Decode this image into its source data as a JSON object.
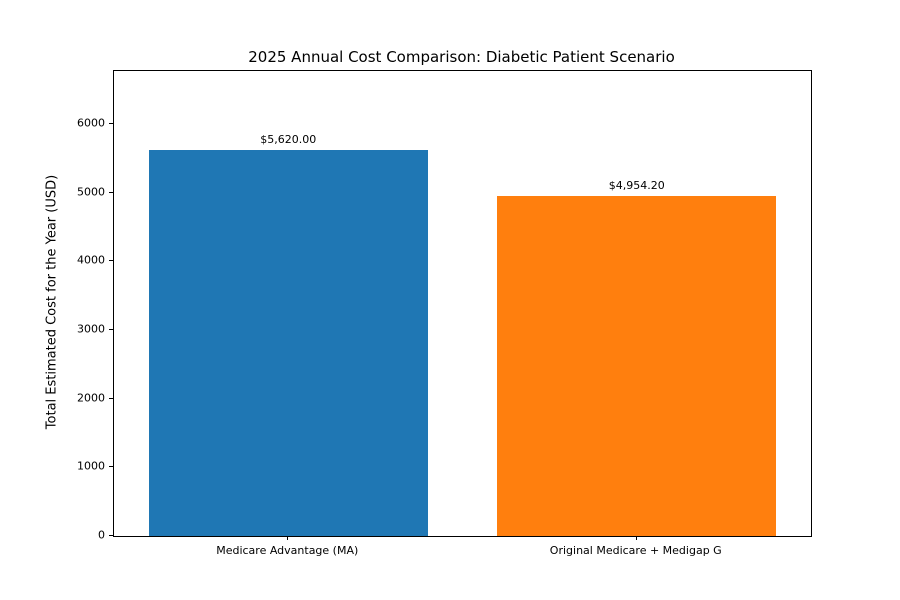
{
  "chart_data": {
    "type": "bar",
    "title": "2025 Annual Cost Comparison: Diabetic Patient Scenario",
    "xlabel": "",
    "ylabel": "Total Estimated Cost for the Year (USD)",
    "categories": [
      "Medicare Advantage (MA)",
      "Original Medicare + Medigap G"
    ],
    "values": [
      5620.0,
      4954.2
    ],
    "bar_value_labels": [
      "$5,620.00",
      "$4,954.20"
    ],
    "bar_colors": [
      "#1f77b4",
      "#ff7f0e"
    ],
    "yticks": [
      0,
      1000,
      2000,
      3000,
      4000,
      5000,
      6000
    ],
    "ylim": [
      0,
      6770
    ],
    "grid": false,
    "legend": "none",
    "bar_width_fraction": 0.8
  }
}
